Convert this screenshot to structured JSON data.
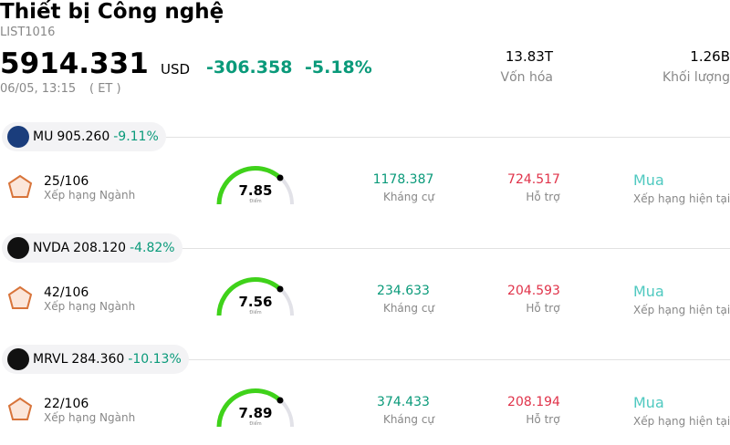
{
  "header": {
    "title": "Thiết bị Công nghệ",
    "code": "LIST1016",
    "price": "5914.331",
    "currency": "USD",
    "change": "-306.358",
    "change_pct": "-5.18%",
    "time": "06/05, 13:15",
    "timezone": "( ET )",
    "stats": [
      {
        "value": "13.83T",
        "label": "Vốn hóa"
      },
      {
        "value": "1.26B",
        "label": "Khối lượng"
      }
    ]
  },
  "stocks": [
    {
      "ticker": "MU",
      "price": "905.260",
      "change": "-9.11%",
      "rank": "25/106",
      "rank_label": "Xếp hạng Ngành",
      "score": "7.85",
      "score_label": "Điểm",
      "resistance": "1178.387",
      "resistance_label": "Kháng cự",
      "support": "724.517",
      "support_label": "Hỗ trợ",
      "rating": "Mua",
      "rating_label": "Xếp hạng hiện tại"
    },
    {
      "ticker": "NVDA",
      "price": "208.120",
      "change": "-4.82%",
      "rank": "42/106",
      "rank_label": "Xếp hạng Ngành",
      "score": "7.56",
      "score_label": "Điểm",
      "resistance": "234.633",
      "resistance_label": "Kháng cự",
      "support": "204.593",
      "support_label": "Hỗ trợ",
      "rating": "Mua",
      "rating_label": "Xếp hạng hiện tại"
    },
    {
      "ticker": "MRVL",
      "price": "284.360",
      "change": "-10.13%",
      "rank": "22/106",
      "rank_label": "Xếp hạng Ngành",
      "score": "7.89",
      "score_label": "Điểm",
      "resistance": "374.433",
      "resistance_label": "Kháng cự",
      "support": "208.194",
      "support_label": "Hỗ trợ",
      "rating": "Mua",
      "rating_label": "Xếp hạng hiện tại"
    }
  ]
}
